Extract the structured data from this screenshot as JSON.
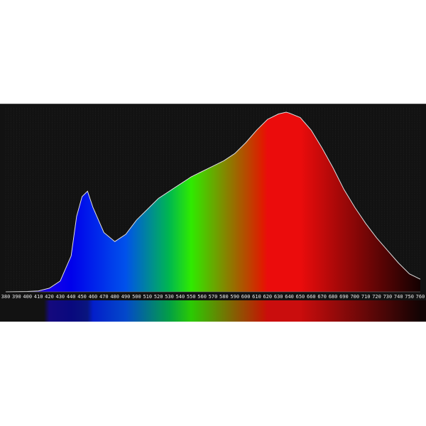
{
  "chart_data": {
    "type": "area",
    "title": "",
    "xlabel": "",
    "ylabel": "",
    "xlim": [
      380,
      760
    ],
    "ylim": [
      0,
      1
    ],
    "grid": true,
    "x_ticks": [
      380,
      390,
      400,
      410,
      420,
      430,
      440,
      450,
      460,
      470,
      480,
      490,
      500,
      510,
      520,
      530,
      540,
      550,
      560,
      570,
      580,
      590,
      600,
      610,
      620,
      630,
      640,
      650,
      660,
      670,
      680,
      690,
      700,
      710,
      720,
      730,
      740,
      750,
      760
    ],
    "x": [
      380,
      400,
      410,
      420,
      430,
      440,
      445,
      450,
      455,
      460,
      470,
      480,
      490,
      500,
      510,
      520,
      530,
      540,
      550,
      560,
      570,
      580,
      590,
      600,
      610,
      620,
      630,
      637,
      640,
      650,
      660,
      670,
      680,
      690,
      700,
      710,
      720,
      730,
      740,
      750,
      760
    ],
    "y": [
      0,
      0.002,
      0.005,
      0.02,
      0.06,
      0.2,
      0.42,
      0.53,
      0.56,
      0.47,
      0.33,
      0.28,
      0.32,
      0.4,
      0.46,
      0.52,
      0.56,
      0.6,
      0.64,
      0.67,
      0.7,
      0.73,
      0.77,
      0.83,
      0.9,
      0.96,
      0.99,
      1.0,
      0.995,
      0.97,
      0.9,
      0.8,
      0.69,
      0.57,
      0.47,
      0.38,
      0.3,
      0.23,
      0.16,
      0.1,
      0.07
    ],
    "fill": "wavelength-colored spectrum gradient",
    "line_color": "#e0e0e0",
    "background": "#121212"
  }
}
